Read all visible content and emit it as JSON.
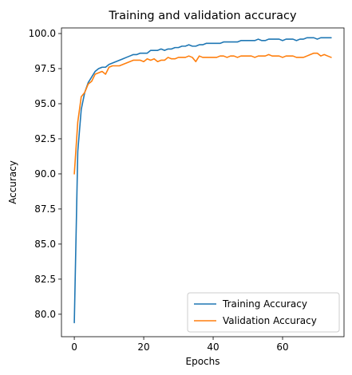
{
  "chart_data": {
    "type": "line",
    "title": "Training and validation accuracy",
    "xlabel": "Epochs",
    "ylabel": "Accuracy",
    "xlim": [
      -3.7,
      77.7
    ],
    "ylim": [
      78.4,
      100.4
    ],
    "xticks": [
      0,
      20,
      40,
      60
    ],
    "yticks": [
      80.0,
      82.5,
      85.0,
      87.5,
      90.0,
      92.5,
      95.0,
      97.5,
      100.0
    ],
    "legend_position": "lower-right",
    "grid": false,
    "x": [
      0,
      1,
      2,
      3,
      4,
      5,
      6,
      7,
      8,
      9,
      10,
      11,
      12,
      13,
      14,
      15,
      16,
      17,
      18,
      19,
      20,
      21,
      22,
      23,
      24,
      25,
      26,
      27,
      28,
      29,
      30,
      31,
      32,
      33,
      34,
      35,
      36,
      37,
      38,
      39,
      40,
      41,
      42,
      43,
      44,
      45,
      46,
      47,
      48,
      49,
      50,
      51,
      52,
      53,
      54,
      55,
      56,
      57,
      58,
      59,
      60,
      61,
      62,
      63,
      64,
      65,
      66,
      67,
      68,
      69,
      70,
      71,
      72,
      73,
      74
    ],
    "series": [
      {
        "name": "Training Accuracy",
        "color": "#1f77b4",
        "values": [
          79.4,
          91.6,
          94.6,
          95.8,
          96.5,
          96.9,
          97.3,
          97.5,
          97.6,
          97.6,
          97.8,
          97.9,
          98.0,
          98.1,
          98.2,
          98.3,
          98.4,
          98.5,
          98.5,
          98.6,
          98.6,
          98.6,
          98.8,
          98.8,
          98.8,
          98.9,
          98.8,
          98.9,
          98.9,
          99.0,
          99.0,
          99.1,
          99.1,
          99.2,
          99.1,
          99.1,
          99.2,
          99.2,
          99.3,
          99.3,
          99.3,
          99.3,
          99.3,
          99.4,
          99.4,
          99.4,
          99.4,
          99.4,
          99.5,
          99.5,
          99.5,
          99.5,
          99.5,
          99.6,
          99.5,
          99.5,
          99.6,
          99.6,
          99.6,
          99.6,
          99.5,
          99.6,
          99.6,
          99.6,
          99.5,
          99.6,
          99.6,
          99.7,
          99.7,
          99.7,
          99.6,
          99.7,
          99.7,
          99.7,
          99.7
        ]
      },
      {
        "name": "Validation Accuracy",
        "color": "#ff7f0e",
        "values": [
          90.0,
          93.7,
          95.5,
          95.8,
          96.4,
          96.6,
          97.1,
          97.2,
          97.3,
          97.1,
          97.6,
          97.7,
          97.7,
          97.7,
          97.8,
          97.9,
          98.0,
          98.1,
          98.1,
          98.1,
          98.0,
          98.2,
          98.1,
          98.2,
          98.0,
          98.1,
          98.1,
          98.3,
          98.2,
          98.2,
          98.3,
          98.3,
          98.3,
          98.4,
          98.3,
          98.0,
          98.4,
          98.3,
          98.3,
          98.3,
          98.3,
          98.3,
          98.4,
          98.4,
          98.3,
          98.4,
          98.4,
          98.3,
          98.4,
          98.4,
          98.4,
          98.4,
          98.3,
          98.4,
          98.4,
          98.4,
          98.5,
          98.4,
          98.4,
          98.4,
          98.3,
          98.4,
          98.4,
          98.4,
          98.3,
          98.3,
          98.3,
          98.4,
          98.5,
          98.6,
          98.6,
          98.4,
          98.5,
          98.4,
          98.3
        ]
      }
    ]
  }
}
